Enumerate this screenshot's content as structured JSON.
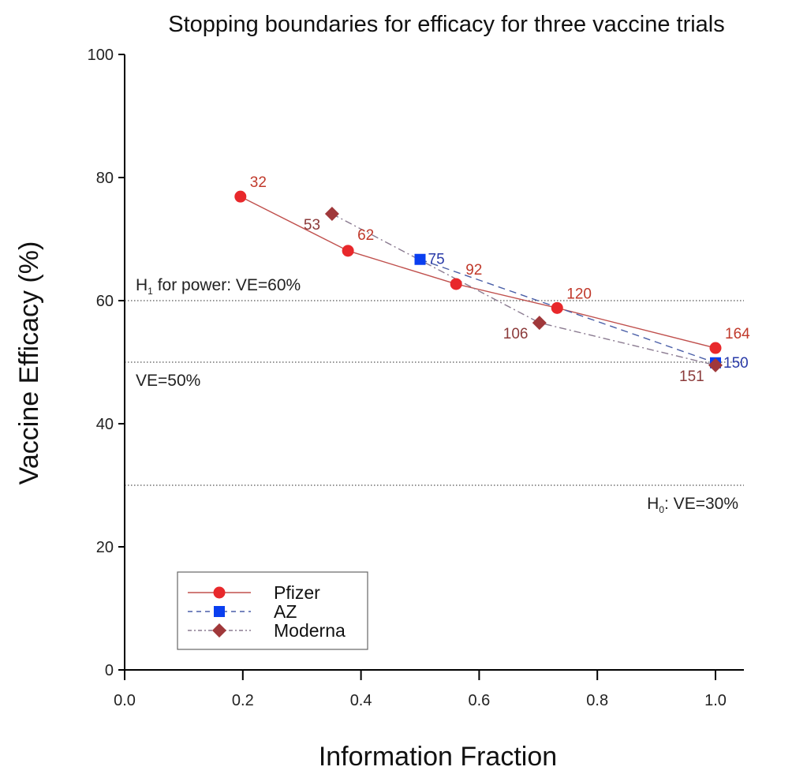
{
  "chart_data": {
    "type": "line",
    "title": "Stopping boundaries for efficacy for three vaccine trials",
    "xlabel": "Information Fraction",
    "ylabel": "Vaccine Efficacy (%)",
    "xlim": [
      0.0,
      1.05
    ],
    "ylim": [
      0,
      100
    ],
    "xticks": [
      "0.0",
      "0.2",
      "0.4",
      "0.6",
      "0.8",
      "1.0"
    ],
    "yticks": [
      "0",
      "20",
      "40",
      "60",
      "80",
      "100"
    ],
    "grid": false,
    "legend_position": "bottom-left",
    "reference_lines": [
      {
        "y": 60,
        "label_main": "H",
        "label_sub": "1",
        "label_rest": " for power: VE=60%"
      },
      {
        "y": 50,
        "label_main": "VE=50%",
        "label_sub": "",
        "label_rest": ""
      },
      {
        "y": 30,
        "label_main": "H",
        "label_sub": "0",
        "label_rest": ": VE=30%"
      }
    ],
    "series": [
      {
        "name": "Pfizer",
        "color": "#e8282b",
        "line_color": "#c0504d",
        "label_color": "#c0392b",
        "marker": "circle",
        "line_style": "solid",
        "x": [
          0.196,
          0.378,
          0.561,
          0.732,
          1.0
        ],
        "y": [
          76.9,
          68.1,
          62.7,
          58.8,
          52.3
        ],
        "point_labels": [
          "32",
          "62",
          "92",
          "120",
          "164"
        ]
      },
      {
        "name": "AZ",
        "color": "#0a3ff0",
        "line_color": "#4a5fa8",
        "label_color": "#2a3ba8",
        "marker": "square",
        "line_style": "dashed",
        "x": [
          0.5,
          1.0
        ],
        "y": [
          66.7,
          49.9
        ],
        "point_labels": [
          "75",
          "150"
        ]
      },
      {
        "name": "Moderna",
        "color": "#a0383a",
        "line_color": "#8a7a90",
        "label_color": "#8b3a3a",
        "marker": "diamond",
        "line_style": "dashdot",
        "x": [
          0.351,
          0.702,
          1.0
        ],
        "y": [
          74.1,
          56.4,
          49.5
        ],
        "point_labels": [
          "53",
          "106",
          "151"
        ]
      }
    ]
  }
}
